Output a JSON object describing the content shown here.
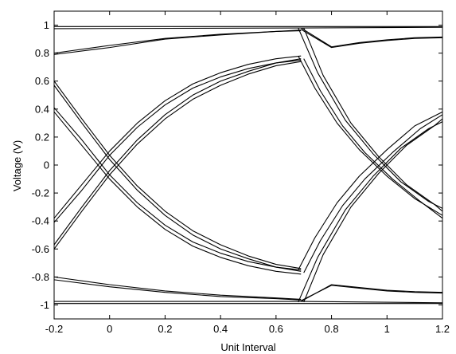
{
  "chart_data": {
    "type": "line",
    "title": "",
    "xlabel": "Unit Interval",
    "ylabel": "Voltage (V)",
    "xlim": [
      -0.2,
      1.2
    ],
    "ylim": [
      -1.1,
      1.1
    ],
    "grid": false,
    "legend": "none",
    "line_color": "#000000",
    "x_ticks": [
      -0.2,
      0,
      0.2,
      0.4,
      0.6,
      0.8,
      1,
      1.2
    ],
    "x_tick_labels": [
      "-0.2",
      "0",
      "0.2",
      "0.4",
      "0.6",
      "0.8",
      "1",
      "1.2"
    ],
    "y_ticks": [
      1,
      0.8,
      0.6,
      0.4,
      0.2,
      0,
      -0.2,
      -0.4,
      -0.6,
      -0.8,
      -1
    ],
    "y_tick_labels": [
      "1",
      "0.8",
      "0.6",
      "0.4",
      "0.2",
      "0",
      "-0.2",
      "-0.4",
      "-0.6",
      "-0.8",
      "-1"
    ],
    "series": [
      {
        "x": [
          -0.2,
          0.7,
          1.2
        ],
        "y": [
          0.99,
          0.99,
          0.99
        ]
      },
      {
        "x": [
          -0.2,
          0.68,
          1.2
        ],
        "y": [
          0.975,
          0.98,
          0.985
        ]
      },
      {
        "x": [
          -0.2,
          0.69,
          1.2
        ],
        "y": [
          -0.99,
          -0.99,
          -0.99
        ]
      },
      {
        "x": [
          -0.2,
          0.69,
          1.2
        ],
        "y": [
          -0.975,
          -0.975,
          -0.985
        ]
      },
      {
        "x": [
          -0.2,
          0.0,
          0.2,
          0.4,
          0.6,
          0.69
        ],
        "y": [
          0.79,
          0.84,
          0.9,
          0.93,
          0.955,
          0.96
        ]
      },
      {
        "x": [
          -0.2,
          0.0,
          0.2,
          0.4,
          0.6,
          0.69
        ],
        "y": [
          0.8,
          0.855,
          0.905,
          0.935,
          0.955,
          0.965
        ]
      },
      {
        "x": [
          -0.2,
          0.0,
          0.2,
          0.4,
          0.6,
          0.69
        ],
        "y": [
          -0.82,
          -0.87,
          -0.91,
          -0.94,
          -0.955,
          -0.965
        ]
      },
      {
        "x": [
          -0.2,
          0.0,
          0.2,
          0.4,
          0.6,
          0.69
        ],
        "y": [
          -0.8,
          -0.855,
          -0.9,
          -0.93,
          -0.95,
          -0.96
        ]
      },
      {
        "x": [
          0.69,
          0.8,
          0.9,
          1.0,
          1.1,
          1.2
        ],
        "y": [
          0.97,
          0.84,
          0.87,
          0.89,
          0.905,
          0.91
        ]
      },
      {
        "x": [
          0.69,
          0.8,
          0.9,
          1.0,
          1.1,
          1.2
        ],
        "y": [
          0.98,
          0.845,
          0.875,
          0.895,
          0.91,
          0.915
        ]
      },
      {
        "x": [
          0.69,
          0.8,
          0.9,
          1.0,
          1.1,
          1.2
        ],
        "y": [
          -0.97,
          -0.86,
          -0.88,
          -0.9,
          -0.91,
          -0.915
        ]
      },
      {
        "x": [
          0.69,
          0.8,
          0.9,
          1.0,
          1.1,
          1.2
        ],
        "y": [
          -0.975,
          -0.855,
          -0.875,
          -0.895,
          -0.905,
          -0.91
        ]
      },
      {
        "x": [
          -0.2,
          -0.1,
          0.0,
          0.1,
          0.2,
          0.3,
          0.4,
          0.5,
          0.6,
          0.69
        ],
        "y": [
          -0.41,
          -0.18,
          0.07,
          0.27,
          0.43,
          0.55,
          0.63,
          0.69,
          0.73,
          0.75
        ]
      },
      {
        "x": [
          -0.2,
          -0.1,
          0.0,
          0.1,
          0.2,
          0.3,
          0.4,
          0.5,
          0.6,
          0.69
        ],
        "y": [
          -0.38,
          -0.14,
          0.1,
          0.3,
          0.46,
          0.58,
          0.66,
          0.72,
          0.76,
          0.78
        ]
      },
      {
        "x": [
          -0.2,
          -0.1,
          0.0,
          0.1,
          0.2,
          0.3,
          0.4,
          0.5,
          0.6,
          0.69
        ],
        "y": [
          -0.6,
          -0.33,
          -0.07,
          0.15,
          0.33,
          0.47,
          0.57,
          0.65,
          0.71,
          0.74
        ]
      },
      {
        "x": [
          -0.2,
          -0.1,
          0.0,
          0.1,
          0.2,
          0.3,
          0.4,
          0.5,
          0.6,
          0.69
        ],
        "y": [
          -0.57,
          -0.3,
          -0.04,
          0.18,
          0.36,
          0.5,
          0.6,
          0.67,
          0.73,
          0.76
        ]
      },
      {
        "x": [
          -0.2,
          -0.1,
          0.0,
          0.1,
          0.2,
          0.3,
          0.4,
          0.5,
          0.6,
          0.69
        ],
        "y": [
          0.6,
          0.33,
          0.07,
          -0.15,
          -0.33,
          -0.47,
          -0.57,
          -0.65,
          -0.71,
          -0.74
        ]
      },
      {
        "x": [
          -0.2,
          -0.1,
          0.0,
          0.1,
          0.2,
          0.3,
          0.4,
          0.5,
          0.6,
          0.69
        ],
        "y": [
          0.57,
          0.3,
          0.04,
          -0.18,
          -0.36,
          -0.5,
          -0.6,
          -0.67,
          -0.73,
          -0.76
        ]
      },
      {
        "x": [
          -0.2,
          -0.1,
          0.0,
          0.1,
          0.2,
          0.3,
          0.4,
          0.5,
          0.6,
          0.69
        ],
        "y": [
          0.41,
          0.18,
          -0.07,
          -0.27,
          -0.43,
          -0.55,
          -0.63,
          -0.69,
          -0.73,
          -0.75
        ]
      },
      {
        "x": [
          -0.2,
          -0.1,
          0.0,
          0.1,
          0.2,
          0.3,
          0.4,
          0.5,
          0.6,
          0.69
        ],
        "y": [
          0.38,
          0.14,
          -0.1,
          -0.3,
          -0.46,
          -0.58,
          -0.66,
          -0.72,
          -0.76,
          -0.78
        ]
      },
      {
        "x": [
          0.68,
          0.75,
          0.85,
          0.95,
          1.05,
          1.15,
          1.2
        ],
        "y": [
          0.98,
          0.66,
          0.32,
          0.08,
          -0.12,
          -0.26,
          -0.31
        ]
      },
      {
        "x": [
          0.7,
          0.77,
          0.87,
          0.97,
          1.07,
          1.17,
          1.2
        ],
        "y": [
          0.98,
          0.64,
          0.3,
          0.06,
          -0.14,
          -0.28,
          -0.33
        ]
      },
      {
        "x": [
          0.68,
          0.74,
          0.82,
          0.9,
          1.0,
          1.1,
          1.2
        ],
        "y": [
          0.78,
          0.55,
          0.3,
          0.11,
          -0.08,
          -0.24,
          -0.36
        ]
      },
      {
        "x": [
          0.7,
          0.76,
          0.84,
          0.92,
          1.02,
          1.12,
          1.2
        ],
        "y": [
          0.76,
          0.53,
          0.28,
          0.09,
          -0.1,
          -0.26,
          -0.38
        ]
      },
      {
        "x": [
          0.68,
          0.75,
          0.85,
          0.95,
          1.05,
          1.15,
          1.2
        ],
        "y": [
          -0.98,
          -0.66,
          -0.32,
          -0.08,
          0.12,
          0.26,
          0.31
        ]
      },
      {
        "x": [
          0.7,
          0.77,
          0.87,
          0.97,
          1.07,
          1.17,
          1.2
        ],
        "y": [
          -0.98,
          -0.64,
          -0.3,
          -0.06,
          0.14,
          0.28,
          0.33
        ]
      },
      {
        "x": [
          0.68,
          0.74,
          0.82,
          0.9,
          1.0,
          1.1,
          1.2
        ],
        "y": [
          -0.75,
          -0.52,
          -0.27,
          -0.08,
          0.11,
          0.28,
          0.38
        ]
      },
      {
        "x": [
          0.7,
          0.76,
          0.84,
          0.92,
          1.02,
          1.12,
          1.2
        ],
        "y": [
          -0.77,
          -0.54,
          -0.29,
          -0.1,
          0.09,
          0.26,
          0.36
        ]
      }
    ]
  }
}
